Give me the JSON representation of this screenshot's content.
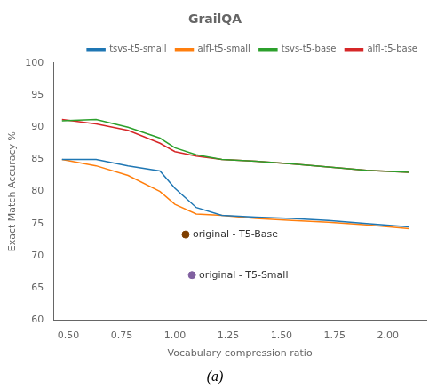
{
  "chart_data": {
    "type": "line",
    "title": "GrailQA",
    "xlabel": "Vocabulary compression ratio",
    "ylabel": "Exact Match Accuracy %",
    "caption": "(a)",
    "x": [
      0.47,
      0.63,
      0.78,
      0.93,
      1.0,
      1.1,
      1.22,
      1.38,
      1.55,
      1.72,
      1.9,
      2.1
    ],
    "series": [
      {
        "name": "tsvs-t5-small",
        "color": "#1f77b4",
        "values": [
          85.0,
          85.0,
          84.0,
          83.2,
          80.5,
          77.5,
          76.3,
          76.0,
          75.8,
          75.5,
          75.0,
          74.5
        ]
      },
      {
        "name": "alfl-t5-small",
        "color": "#ff7f0e",
        "values": [
          85.0,
          84.0,
          82.5,
          80.0,
          78.0,
          76.5,
          76.3,
          75.8,
          75.5,
          75.2,
          74.8,
          74.2
        ]
      },
      {
        "name": "tsvs-t5-base",
        "color": "#2ca02c",
        "values": [
          91.0,
          91.2,
          90.0,
          88.3,
          86.8,
          85.7,
          85.0,
          84.7,
          84.3,
          83.8,
          83.3,
          83.0
        ]
      },
      {
        "name": "alfl-t5-base",
        "color": "#d62728",
        "values": [
          91.2,
          90.5,
          89.5,
          87.5,
          86.2,
          85.5,
          85.0,
          84.7,
          84.3,
          83.8,
          83.3,
          83.0
        ]
      }
    ],
    "annotations": [
      {
        "text": "original - T5-Base",
        "x": 1.05,
        "y": 73.3,
        "color": "#7f3f00"
      },
      {
        "text": "original - T5-Small",
        "x": 1.08,
        "y": 67.0,
        "color": "#8060a0"
      }
    ],
    "xlim": [
      0.43,
      2.18
    ],
    "ylim": [
      60,
      100
    ],
    "xticks": [
      {
        "value": 0.5,
        "label": "0.50"
      },
      {
        "value": 0.75,
        "label": "0.75"
      },
      {
        "value": 1.0,
        "label": "1.00"
      },
      {
        "value": 1.25,
        "label": "1.25"
      },
      {
        "value": 1.5,
        "label": "1.50"
      },
      {
        "value": 1.75,
        "label": "1.75"
      },
      {
        "value": 2.0,
        "label": "2.00"
      }
    ],
    "yticks": [
      60,
      65,
      70,
      75,
      80,
      85,
      90,
      95,
      100
    ],
    "grid": false,
    "legend": "upper right"
  }
}
